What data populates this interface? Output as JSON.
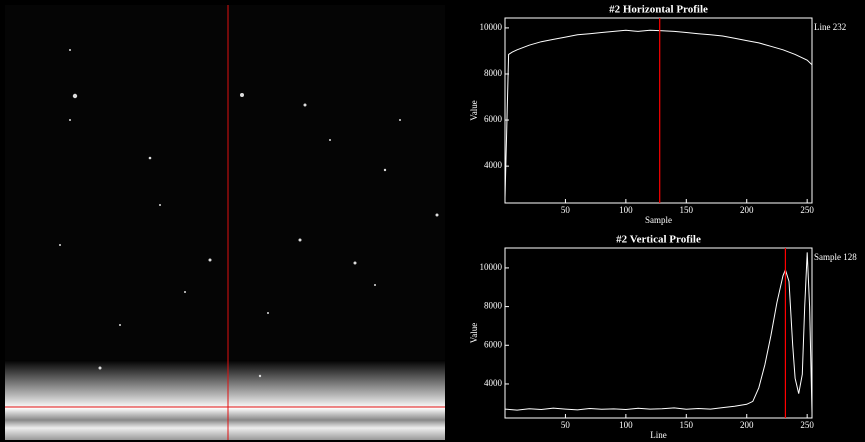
{
  "chart_data": [
    {
      "type": "line",
      "title": "#2 Horizontal Profile",
      "x_label": "Sample",
      "y_label": "Value",
      "annotation": "Line 232",
      "x": [
        0,
        3,
        6,
        10,
        20,
        30,
        40,
        50,
        60,
        70,
        80,
        90,
        100,
        110,
        120,
        130,
        140,
        150,
        160,
        170,
        180,
        190,
        200,
        210,
        220,
        230,
        240,
        250,
        254
      ],
      "series": [
        {
          "color": "#ffffff",
          "values": [
            2600,
            8850,
            8950,
            9050,
            9250,
            9400,
            9500,
            9600,
            9700,
            9750,
            9800,
            9850,
            9900,
            9850,
            9900,
            9880,
            9850,
            9800,
            9750,
            9700,
            9650,
            9550,
            9450,
            9350,
            9200,
            9050,
            8850,
            8600,
            8400
          ]
        }
      ],
      "cursor": 128,
      "cursor_color": "#ff0000",
      "xlim": [
        0,
        254
      ],
      "ylim": [
        2400,
        10430
      ],
      "xticks": [
        50,
        100,
        150,
        200,
        250
      ],
      "yticks": [
        4000,
        6000,
        8000,
        10000
      ]
    },
    {
      "type": "line",
      "title": "#2 Vertical Profile",
      "x_label": "Line",
      "y_label": "Value",
      "annotation": "Sample 128",
      "x": [
        0,
        10,
        20,
        30,
        40,
        50,
        60,
        70,
        80,
        90,
        100,
        110,
        120,
        130,
        140,
        150,
        160,
        170,
        180,
        190,
        200,
        205,
        210,
        215,
        220,
        225,
        230,
        232,
        235,
        238,
        240,
        243,
        246,
        248,
        250,
        252,
        254
      ],
      "series": [
        {
          "color": "#ffffff",
          "values": [
            2700,
            2650,
            2720,
            2680,
            2750,
            2700,
            2660,
            2730,
            2690,
            2710,
            2680,
            2740,
            2700,
            2720,
            2760,
            2690,
            2730,
            2700,
            2780,
            2850,
            2950,
            3100,
            3800,
            5000,
            6500,
            8200,
            9600,
            9900,
            9300,
            6000,
            4300,
            3500,
            4500,
            8000,
            10800,
            8000,
            2500
          ]
        }
      ],
      "cursor": 232,
      "cursor_color": "#ff0000",
      "xlim": [
        0,
        254
      ],
      "ylim": [
        2240,
        11030
      ],
      "xticks": [
        50,
        100,
        150,
        200,
        250
      ],
      "yticks": [
        4000,
        6000,
        8000,
        10000
      ]
    }
  ]
}
